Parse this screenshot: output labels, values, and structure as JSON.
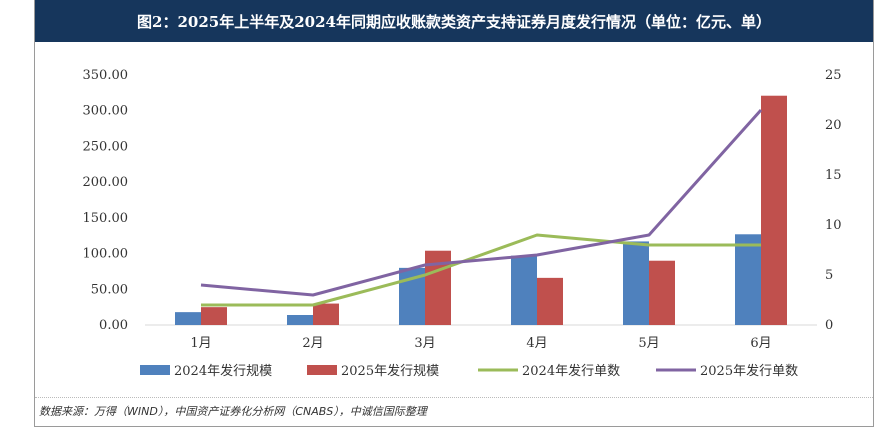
{
  "title": "图2：2025年上半年及2024年同期应收账款类资产支持证券月度发行情况（单位：亿元、单）",
  "source": "数据来源：万得（WIND），中国资产证券化分析网（CNABS），中诚信国际整理",
  "chart_data": {
    "type": "bar",
    "categories": [
      "1月",
      "2月",
      "3月",
      "4月",
      "5月",
      "6月"
    ],
    "series": [
      {
        "name": "2024年发行规模",
        "kind": "bar",
        "axis": "left",
        "color": "#4f81bd",
        "values": [
          18,
          14,
          80,
          97,
          117,
          127
        ]
      },
      {
        "name": "2025年发行规模",
        "kind": "bar",
        "axis": "left",
        "color": "#c0504d",
        "values": [
          25,
          30,
          104,
          66,
          90,
          321
        ]
      },
      {
        "name": "2024年发行单数",
        "kind": "line",
        "axis": "right",
        "color": "#9bbb59",
        "values": [
          2,
          2,
          5,
          9,
          8,
          8
        ]
      },
      {
        "name": "2025年发行单数",
        "kind": "line",
        "axis": "right",
        "color": "#8064a2",
        "values": [
          4,
          3,
          6,
          7,
          9,
          21.5
        ]
      }
    ],
    "y_left": {
      "ticks": [
        "0.00",
        "50.00",
        "100.00",
        "150.00",
        "200.00",
        "250.00",
        "300.00",
        "350.00"
      ],
      "min": 0,
      "max": 350
    },
    "y_right": {
      "ticks": [
        "0",
        "5",
        "10",
        "15",
        "20",
        "25"
      ],
      "min": 0,
      "max": 25
    },
    "grid": false,
    "legend_position": "bottom"
  }
}
